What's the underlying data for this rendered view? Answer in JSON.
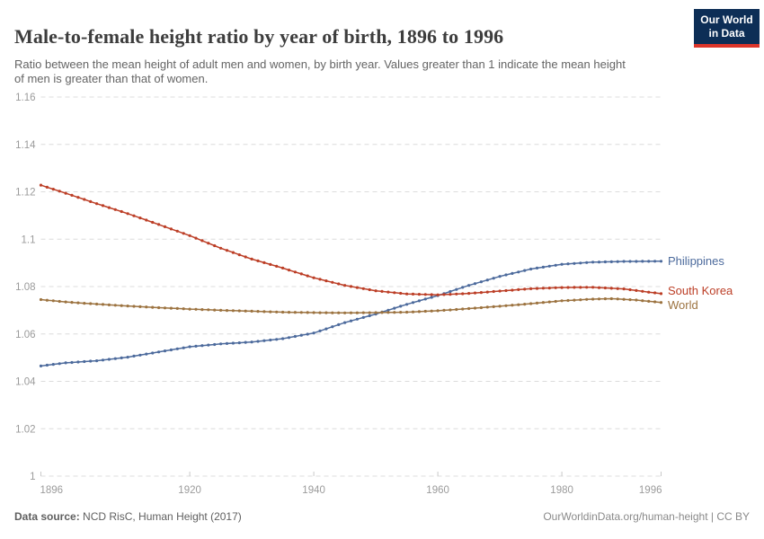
{
  "header": {
    "title": "Male-to-female height ratio by year of birth, 1896 to 1996",
    "subtitle": "Ratio between the mean height of adult men and women, by birth year. Values greater than 1 indicate the mean height of men is greater than that of women.",
    "logo": {
      "line1": "Our World",
      "line2": "in Data"
    }
  },
  "footer": {
    "source_label": "Data source:",
    "source_value": "NCD RisC, Human Height (2017)",
    "citation": "OurWorldinData.org/human-height | CC BY"
  },
  "colors": {
    "logo_navy": "#0d2e56",
    "logo_red": "#dc352a",
    "grid": "#dcdcdc",
    "tick_mark": "#c9c9c9",
    "axis_text": "#9b9b9b",
    "title_text": "#3d3d3d",
    "subtitle_text": "#646464"
  },
  "chart_data": {
    "type": "line",
    "title": "Male-to-female height ratio by year of birth, 1896 to 1996",
    "xlabel": "",
    "ylabel": "",
    "x_range": [
      1896,
      1996
    ],
    "y_range": [
      1,
      1.16
    ],
    "x_ticks": [
      1896,
      1920,
      1940,
      1960,
      1980,
      1996
    ],
    "y_ticks": [
      1,
      1.02,
      1.04,
      1.06,
      1.08,
      1.1,
      1.12,
      1.14,
      1.16
    ],
    "y_tick_labels": [
      "1",
      "1.02",
      "1.04",
      "1.06",
      "1.08",
      "1.1",
      "1.12",
      "1.14",
      "1.16"
    ],
    "grid": "dashed-horizontal",
    "legend_position": "end-of-line",
    "point_interval_years": 1,
    "series": [
      {
        "name": "Philippines",
        "color": "#4C6A9C",
        "points": [
          [
            1896,
            1.0465
          ],
          [
            1900,
            1.0478
          ],
          [
            1905,
            1.0487
          ],
          [
            1910,
            1.0502
          ],
          [
            1915,
            1.0524
          ],
          [
            1920,
            1.0546
          ],
          [
            1925,
            1.0558
          ],
          [
            1930,
            1.0566
          ],
          [
            1935,
            1.058
          ],
          [
            1940,
            1.0604
          ],
          [
            1945,
            1.0648
          ],
          [
            1950,
            1.0684
          ],
          [
            1955,
            1.0725
          ],
          [
            1960,
            1.0762
          ],
          [
            1965,
            1.0805
          ],
          [
            1970,
            1.0843
          ],
          [
            1975,
            1.0874
          ],
          [
            1980,
            1.0894
          ],
          [
            1985,
            1.0903
          ],
          [
            1990,
            1.0906
          ],
          [
            1996,
            1.0907
          ]
        ]
      },
      {
        "name": "South Korea",
        "color": "#BC3E26",
        "points": [
          [
            1896,
            1.1228
          ],
          [
            1900,
            1.1194
          ],
          [
            1905,
            1.115
          ],
          [
            1910,
            1.1108
          ],
          [
            1915,
            1.1062
          ],
          [
            1920,
            1.1015
          ],
          [
            1925,
            1.0962
          ],
          [
            1930,
            1.0916
          ],
          [
            1935,
            1.0878
          ],
          [
            1940,
            1.0837
          ],
          [
            1945,
            1.0805
          ],
          [
            1950,
            1.0782
          ],
          [
            1955,
            1.0769
          ],
          [
            1960,
            1.0765
          ],
          [
            1965,
            1.0771
          ],
          [
            1970,
            1.0781
          ],
          [
            1975,
            1.0791
          ],
          [
            1980,
            1.0796
          ],
          [
            1985,
            1.0797
          ],
          [
            1990,
            1.079
          ],
          [
            1996,
            1.077
          ]
        ]
      },
      {
        "name": "World",
        "color": "#9C7340",
        "points": [
          [
            1896,
            1.0745
          ],
          [
            1900,
            1.0735
          ],
          [
            1905,
            1.0726
          ],
          [
            1910,
            1.0718
          ],
          [
            1915,
            1.0711
          ],
          [
            1920,
            1.0705
          ],
          [
            1925,
            1.07
          ],
          [
            1930,
            1.0696
          ],
          [
            1935,
            1.0692
          ],
          [
            1940,
            1.069
          ],
          [
            1945,
            1.0689
          ],
          [
            1950,
            1.069
          ],
          [
            1955,
            1.0692
          ],
          [
            1960,
            1.0698
          ],
          [
            1965,
            1.0707
          ],
          [
            1970,
            1.0717
          ],
          [
            1975,
            1.0728
          ],
          [
            1980,
            1.074
          ],
          [
            1985,
            1.0747
          ],
          [
            1988,
            1.0749
          ],
          [
            1992,
            1.0743
          ],
          [
            1996,
            1.0733
          ]
        ]
      }
    ]
  }
}
